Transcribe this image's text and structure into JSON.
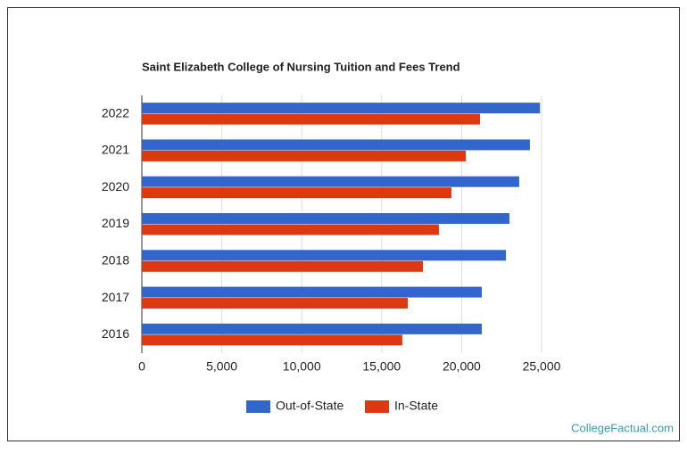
{
  "chart_data": {
    "type": "bar",
    "orientation": "horizontal",
    "title": "Saint Elizabeth College of Nursing Tuition and Fees Trend",
    "categories": [
      "2022",
      "2021",
      "2020",
      "2019",
      "2018",
      "2017",
      "2016"
    ],
    "series": [
      {
        "name": "Out-of-State",
        "color": "#3366cc",
        "values": [
          24900,
          24270,
          23600,
          22990,
          22770,
          21260,
          21260
        ]
      },
      {
        "name": "In-State",
        "color": "#dc3912",
        "values": [
          21150,
          20260,
          19360,
          18580,
          17580,
          16630,
          16290
        ]
      }
    ],
    "xlim": [
      0,
      25000
    ],
    "xticks": [
      0,
      {
        "value": 5000,
        "label": "5,000"
      },
      {
        "value": 10000,
        "label": "10,000"
      },
      {
        "value": 15000,
        "label": "15,000"
      },
      {
        "value": 20000,
        "label": "20,000"
      },
      {
        "value": 25000,
        "label": "25,000"
      }
    ],
    "grid": true,
    "legend": "bottom",
    "source": "CollegeFactual.com"
  }
}
